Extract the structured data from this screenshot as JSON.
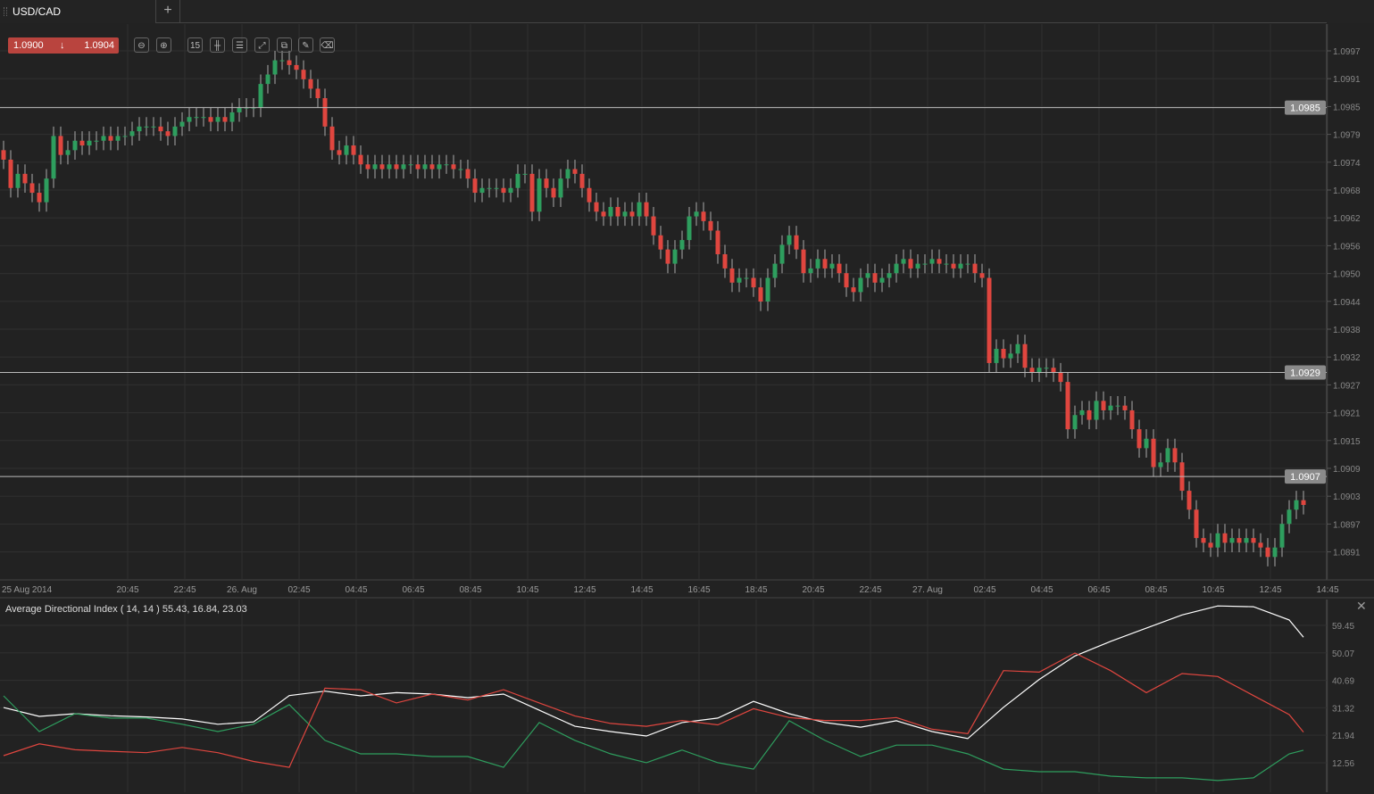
{
  "tab": {
    "symbol": "USD/CAD",
    "add_label": "+"
  },
  "quote": {
    "bid": "1.0900",
    "ask": "1.0904",
    "direction_icon": "arrow-down-icon",
    "color": "#b9443e"
  },
  "toolbar": [
    {
      "name": "zoom-out",
      "icon": "zoom-out-icon",
      "glyph": "⊖"
    },
    {
      "name": "zoom-in",
      "icon": "zoom-in-icon",
      "glyph": "⊕"
    },
    {
      "name": "timeframe",
      "icon": "timeframe-icon",
      "glyph": "15"
    },
    {
      "name": "chart-type",
      "icon": "candlestick-icon",
      "glyph": "╫"
    },
    {
      "name": "indicators",
      "icon": "sliders-icon",
      "glyph": "☰"
    },
    {
      "name": "studies",
      "icon": "trend-icon",
      "glyph": "⤢"
    },
    {
      "name": "compare",
      "icon": "copy-icon",
      "glyph": "⧉"
    },
    {
      "name": "draw",
      "icon": "edit-icon",
      "glyph": "✎"
    },
    {
      "name": "erase",
      "icon": "eraser-icon",
      "glyph": "⌫"
    }
  ],
  "colors": {
    "up": "#2e9e5e",
    "down": "#e0463f",
    "adx": "#ffffff",
    "plus_di": "#2e9e5e",
    "minus_di": "#e0463f",
    "background": "#222222",
    "grid": "#303030"
  },
  "chart_data": [
    {
      "type": "candlestick",
      "symbol": "USD/CAD",
      "interval": "15m",
      "price_ticks": [
        "1.0997",
        "1.0991",
        "1.0985",
        "1.0979",
        "1.0974",
        "1.0968",
        "1.0962",
        "1.0956",
        "1.0950",
        "1.0944",
        "1.0938",
        "1.0932",
        "1.0927",
        "1.0921",
        "1.0915",
        "1.0909",
        "1.0903",
        "1.0897",
        "1.0891"
      ],
      "ylim": [
        1.0886,
        1.1001
      ],
      "time_labels": [
        "25 Aug 2014",
        "20:45",
        "22:45",
        "26. Aug",
        "02:45",
        "04:45",
        "06:45",
        "08:45",
        "10:45",
        "12:45",
        "14:45",
        "16:45",
        "18:45",
        "20:45",
        "22:45",
        "27. Aug",
        "02:45",
        "04:45",
        "06:45",
        "08:45",
        "10:45",
        "12:45",
        "14:45"
      ],
      "horizontal_lines": [
        {
          "price": 1.0985,
          "label": "1.0985"
        },
        {
          "price": 1.0929,
          "label": "1.0929"
        },
        {
          "price": 1.0907,
          "label": "1.0907"
        }
      ],
      "first_open": 1.0976,
      "close": [
        1.0974,
        1.0968,
        1.0971,
        1.0969,
        1.0967,
        1.0965,
        1.097,
        1.0979,
        1.0975,
        1.0976,
        1.0978,
        1.0977,
        1.0978,
        1.0978,
        1.0979,
        1.0978,
        1.0979,
        1.0979,
        1.098,
        1.0981,
        1.0981,
        1.0981,
        1.098,
        1.0979,
        1.0981,
        1.0982,
        1.0983,
        1.0983,
        1.0983,
        1.0982,
        1.0983,
        1.0982,
        1.0984,
        1.0985,
        1.0985,
        1.0985,
        1.099,
        1.0992,
        1.0995,
        1.0995,
        1.0994,
        1.0993,
        1.0991,
        1.0989,
        1.0987,
        1.0981,
        1.0976,
        1.0975,
        1.0977,
        1.0975,
        1.0973,
        1.0972,
        1.0973,
        1.0972,
        1.0973,
        1.0972,
        1.0973,
        1.0973,
        1.0972,
        1.0973,
        1.0972,
        1.0973,
        1.0973,
        1.0972,
        1.0972,
        1.097,
        1.0967,
        1.0968,
        1.0968,
        1.0968,
        1.0967,
        1.0968,
        1.0971,
        1.0971,
        1.0963,
        1.097,
        1.0968,
        1.0966,
        1.097,
        1.0972,
        1.0971,
        1.0968,
        1.0965,
        1.0963,
        1.0962,
        1.0964,
        1.0962,
        1.0963,
        1.0962,
        1.0965,
        1.0962,
        1.0958,
        1.0955,
        1.0952,
        1.0955,
        1.0957,
        1.0962,
        1.0963,
        1.0961,
        1.0959,
        1.0954,
        1.0951,
        1.0948,
        1.0949,
        1.0949,
        1.0947,
        1.0944,
        1.0949,
        1.0952,
        1.0956,
        1.0958,
        1.0955,
        1.095,
        1.0951,
        1.0953,
        1.0951,
        1.0952,
        1.095,
        1.0947,
        1.0946,
        1.0949,
        1.095,
        1.0948,
        1.0949,
        1.095,
        1.0952,
        1.0953,
        1.0951,
        1.0952,
        1.0952,
        1.0953,
        1.0952,
        1.0952,
        1.0951,
        1.0952,
        1.0952,
        1.095,
        1.0949,
        1.0931,
        1.0934,
        1.0932,
        1.0933,
        1.0935,
        1.093,
        1.0929,
        1.093,
        1.093,
        1.0929,
        1.0927,
        1.0917,
        1.092,
        1.0921,
        1.0919,
        1.0923,
        1.0921,
        1.0922,
        1.0922,
        1.0921,
        1.0917,
        1.0913,
        1.0915,
        1.0909,
        1.091,
        1.0913,
        1.091,
        1.0904,
        1.09,
        1.0894,
        1.0893,
        1.0892,
        1.0895,
        1.0893,
        1.0894,
        1.0893,
        1.0894,
        1.0893,
        1.0892,
        1.089,
        1.0892,
        1.0897,
        1.09,
        1.0902,
        1.0901
      ]
    },
    {
      "type": "line",
      "title": "Average Directional Index ( 14, 14 ) 55.43, 16.84, 23.03",
      "y_ticks": [
        "59.45",
        "50.07",
        "40.69",
        "31.32",
        "21.94",
        "12.56"
      ],
      "ylim": [
        3.2,
        68.8
      ],
      "x_candle_index": [
        0,
        5,
        10,
        15,
        20,
        25,
        30,
        35,
        40,
        45,
        50,
        55,
        60,
        65,
        70,
        75,
        80,
        85,
        90,
        95,
        100,
        105,
        110,
        115,
        120,
        125,
        130,
        135,
        140,
        145,
        150,
        155,
        160,
        165,
        170,
        175,
        180,
        182
      ],
      "series": [
        {
          "key": "adx",
          "values": [
            31.4,
            28.4,
            29.3,
            28.6,
            28.2,
            27.5,
            25.7,
            26.5,
            35.5,
            37.0,
            35.4,
            36.5,
            36.0,
            34.8,
            36.0,
            30.5,
            25.0,
            23.2,
            21.7,
            26.3,
            27.8,
            33.5,
            29.3,
            26.3,
            24.7,
            26.9,
            23.2,
            20.8,
            31.5,
            41.0,
            49.0,
            54.0,
            58.5,
            63.0,
            66.1,
            65.8,
            61.3,
            55.43
          ]
        },
        {
          "key": "plus_di",
          "values": [
            35.4,
            23.2,
            29.3,
            27.8,
            27.8,
            25.7,
            23.2,
            25.7,
            32.4,
            20.2,
            15.6,
            15.6,
            14.7,
            14.7,
            11.0,
            26.3,
            20.2,
            15.6,
            12.6,
            16.9,
            12.6,
            10.4,
            26.9,
            20.2,
            14.7,
            18.6,
            18.6,
            15.6,
            10.4,
            9.5,
            9.5,
            8.0,
            7.4,
            7.4,
            6.5,
            7.4,
            15.6,
            16.84
          ]
        },
        {
          "key": "minus_di",
          "values": [
            15.0,
            19.0,
            17.0,
            16.5,
            16.0,
            17.8,
            16.0,
            13.0,
            11.0,
            38.0,
            37.5,
            33.0,
            36.0,
            34.0,
            37.5,
            33.0,
            28.5,
            26.0,
            25.0,
            27.0,
            25.5,
            31.0,
            28.0,
            27.0,
            27.0,
            28.0,
            24.0,
            22.5,
            44.0,
            43.5,
            50.0,
            44.0,
            36.5,
            43.0,
            42.0,
            35.5,
            29.0,
            23.03
          ]
        }
      ]
    }
  ]
}
